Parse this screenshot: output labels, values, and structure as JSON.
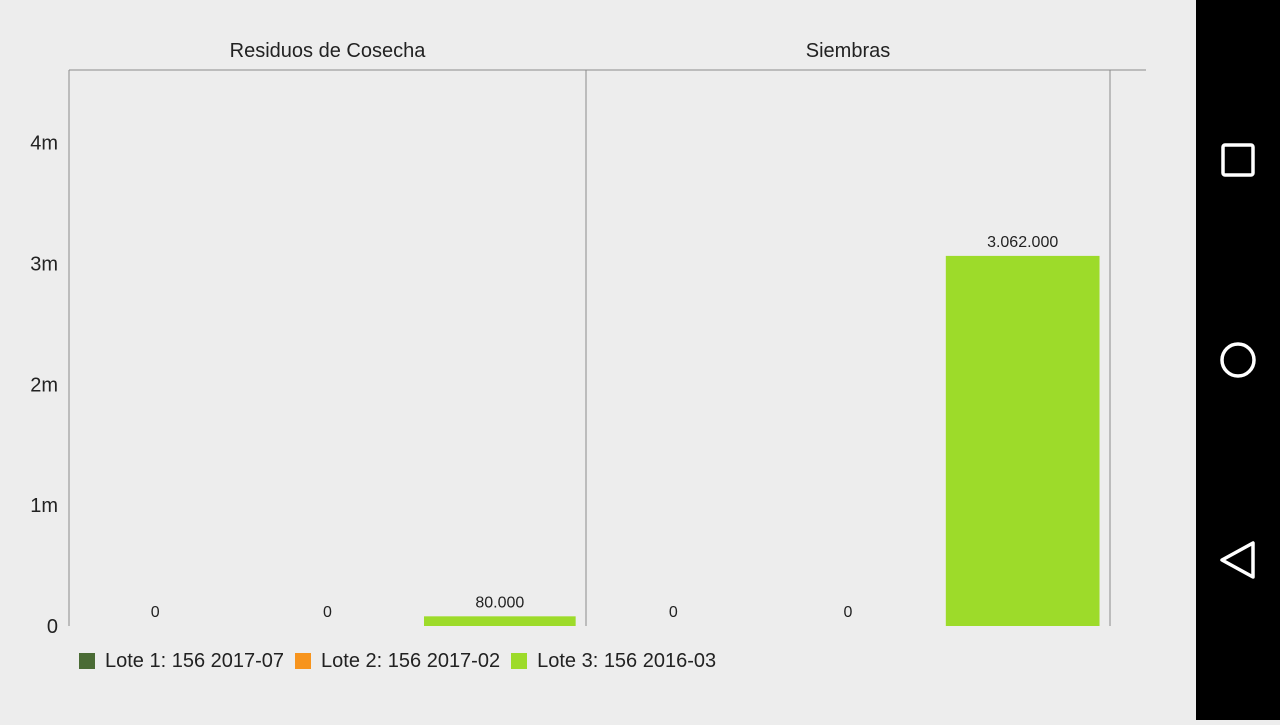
{
  "chart_data": {
    "type": "bar",
    "panels": [
      {
        "title": "Residuos de Cosecha",
        "values": [
          0,
          0,
          80000
        ],
        "labels": [
          "0",
          "0",
          "80.000"
        ]
      },
      {
        "title": "Siembras",
        "values": [
          0,
          0,
          3062000
        ],
        "labels": [
          "0",
          "0",
          "3.062.000"
        ]
      }
    ],
    "series": [
      {
        "name": "Lote 1: 156 2017-07",
        "color": "#4a6b35"
      },
      {
        "name": "Lote 2: 156 2017-02",
        "color": "#f7941d"
      },
      {
        "name": "Lote 3: 156 2016-03",
        "color": "#9ddb2a"
      }
    ],
    "y_ticks": [
      {
        "value": 0,
        "label": "0"
      },
      {
        "value": 1000000,
        "label": "1m"
      },
      {
        "value": 2000000,
        "label": "2m"
      },
      {
        "value": 3000000,
        "label": "3m"
      },
      {
        "value": 4000000,
        "label": "4m"
      }
    ],
    "ylim": [
      0,
      4600000
    ],
    "grid": false,
    "legend_position": "bottom-left"
  },
  "nav": {
    "recent_icon": "square-icon",
    "home_icon": "circle-icon",
    "back_icon": "triangle-back-icon"
  }
}
